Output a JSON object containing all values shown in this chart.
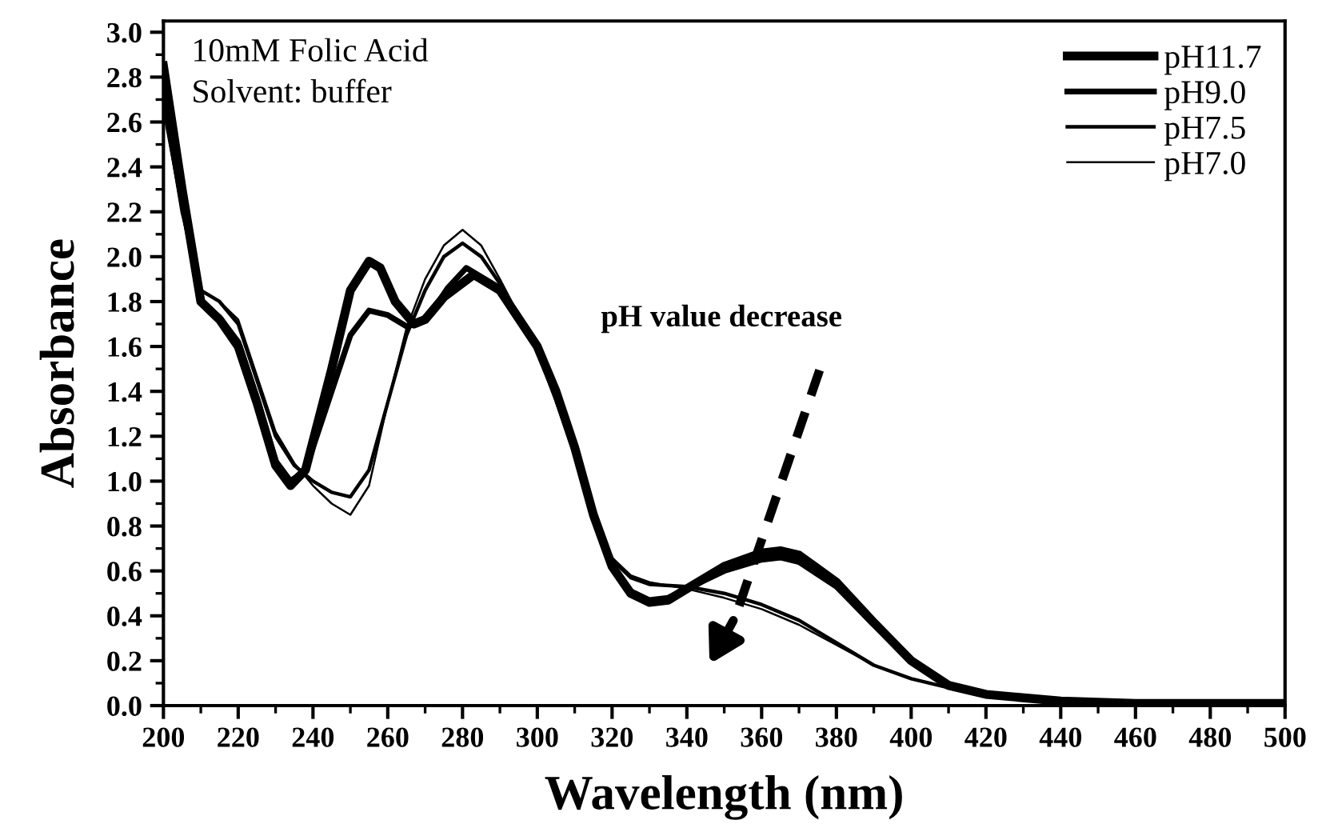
{
  "chart_data": {
    "type": "line",
    "xlabel": "Wavelength (nm)",
    "ylabel": "Absorbance",
    "annotations": [
      "10mM Folic Acid",
      "Solvent: buffer",
      "pH value decrease"
    ],
    "xlim": [
      200,
      500
    ],
    "ylim": [
      0,
      3.05
    ],
    "xticks": [
      200,
      220,
      240,
      260,
      280,
      300,
      320,
      340,
      360,
      380,
      400,
      420,
      440,
      460,
      480,
      500
    ],
    "yticks": [
      {
        "value": 0,
        "label": "0.0"
      },
      {
        "value": 0.2,
        "label": "0.2"
      },
      {
        "value": 0.4,
        "label": "0.4"
      },
      {
        "value": 0.6,
        "label": "0.6"
      },
      {
        "value": 0.8,
        "label": "0.8"
      },
      {
        "value": 1.0,
        "label": "1.0"
      },
      {
        "value": 1.2,
        "label": "1.2"
      },
      {
        "value": 1.4,
        "label": "1.4"
      },
      {
        "value": 1.6,
        "label": "1.6"
      },
      {
        "value": 1.8,
        "label": "1.8"
      },
      {
        "value": 2.0,
        "label": "2.0"
      },
      {
        "value": 2.2,
        "label": "2.2"
      },
      {
        "value": 2.4,
        "label": "2.4"
      },
      {
        "value": 2.6,
        "label": "2.6"
      },
      {
        "value": 2.8,
        "label": "2.8"
      },
      {
        "value": 3.0,
        "label": "3.0"
      }
    ],
    "legend": "top right",
    "grid": false,
    "line_style": "solid",
    "series": [
      {
        "name": "pH11.7",
        "color": "#000000",
        "x": [
          200,
          205,
          210,
          215,
          220,
          225,
          230,
          234,
          238,
          245,
          250,
          255,
          258,
          262,
          267,
          270,
          275,
          283,
          290,
          300,
          305,
          310,
          315,
          320,
          325,
          330,
          335,
          340,
          350,
          360,
          365,
          370,
          380,
          390,
          400,
          410,
          420,
          440,
          460,
          500
        ],
        "values": [
          2.85,
          2.3,
          1.8,
          1.72,
          1.6,
          1.35,
          1.07,
          0.98,
          1.05,
          1.5,
          1.85,
          1.98,
          1.95,
          1.8,
          1.7,
          1.72,
          1.82,
          1.92,
          1.85,
          1.6,
          1.4,
          1.15,
          0.85,
          0.62,
          0.5,
          0.46,
          0.47,
          0.52,
          0.62,
          0.68,
          0.69,
          0.67,
          0.55,
          0.37,
          0.2,
          0.09,
          0.05,
          0.02,
          0.01,
          0.01
        ]
      },
      {
        "name": "pH9.0",
        "color": "#000000",
        "x": [
          200,
          205,
          210,
          215,
          220,
          225,
          230,
          234,
          238,
          245,
          250,
          255,
          260,
          265,
          268,
          272,
          276,
          281,
          290,
          300,
          305,
          310,
          315,
          320,
          325,
          330,
          335,
          340,
          350,
          360,
          365,
          370,
          380,
          390,
          400,
          410,
          420,
          440,
          460,
          500
        ],
        "values": [
          2.8,
          2.25,
          1.8,
          1.73,
          1.62,
          1.37,
          1.09,
          1.0,
          1.05,
          1.4,
          1.65,
          1.76,
          1.74,
          1.69,
          1.7,
          1.76,
          1.86,
          1.95,
          1.86,
          1.6,
          1.4,
          1.15,
          0.85,
          0.62,
          0.51,
          0.47,
          0.48,
          0.52,
          0.6,
          0.65,
          0.66,
          0.64,
          0.53,
          0.36,
          0.2,
          0.09,
          0.05,
          0.02,
          0.01,
          0.01
        ]
      },
      {
        "name": "pH7.5",
        "color": "#000000",
        "x": [
          200,
          205,
          210,
          215,
          220,
          225,
          230,
          235,
          240,
          245,
          250,
          255,
          260,
          265,
          270,
          275,
          280,
          285,
          290,
          300,
          305,
          310,
          315,
          320,
          325,
          330,
          340,
          350,
          360,
          370,
          380,
          390,
          400,
          410,
          420,
          440,
          460,
          500
        ],
        "values": [
          2.7,
          2.2,
          1.85,
          1.8,
          1.7,
          1.45,
          1.2,
          1.07,
          1.0,
          0.95,
          0.93,
          1.05,
          1.35,
          1.65,
          1.85,
          2.0,
          2.06,
          2.0,
          1.88,
          1.58,
          1.36,
          1.12,
          0.85,
          0.65,
          0.57,
          0.54,
          0.53,
          0.5,
          0.45,
          0.38,
          0.28,
          0.18,
          0.12,
          0.08,
          0.05,
          0.02,
          0.01,
          0.01
        ]
      },
      {
        "name": "pH7.0",
        "color": "#000000",
        "x": [
          200,
          205,
          210,
          215,
          220,
          225,
          230,
          235,
          240,
          245,
          250,
          255,
          260,
          265,
          270,
          275,
          280,
          285,
          290,
          300,
          305,
          310,
          315,
          320,
          325,
          330,
          340,
          350,
          360,
          370,
          380,
          390,
          400,
          410,
          420,
          440,
          460,
          500
        ],
        "values": [
          2.65,
          2.2,
          1.85,
          1.8,
          1.72,
          1.47,
          1.22,
          1.08,
          0.98,
          0.9,
          0.85,
          0.98,
          1.35,
          1.68,
          1.9,
          2.05,
          2.12,
          2.05,
          1.9,
          1.58,
          1.36,
          1.12,
          0.85,
          0.66,
          0.58,
          0.55,
          0.52,
          0.48,
          0.43,
          0.36,
          0.27,
          0.18,
          0.12,
          0.08,
          0.05,
          0.02,
          0.01,
          0.01
        ]
      }
    ]
  }
}
